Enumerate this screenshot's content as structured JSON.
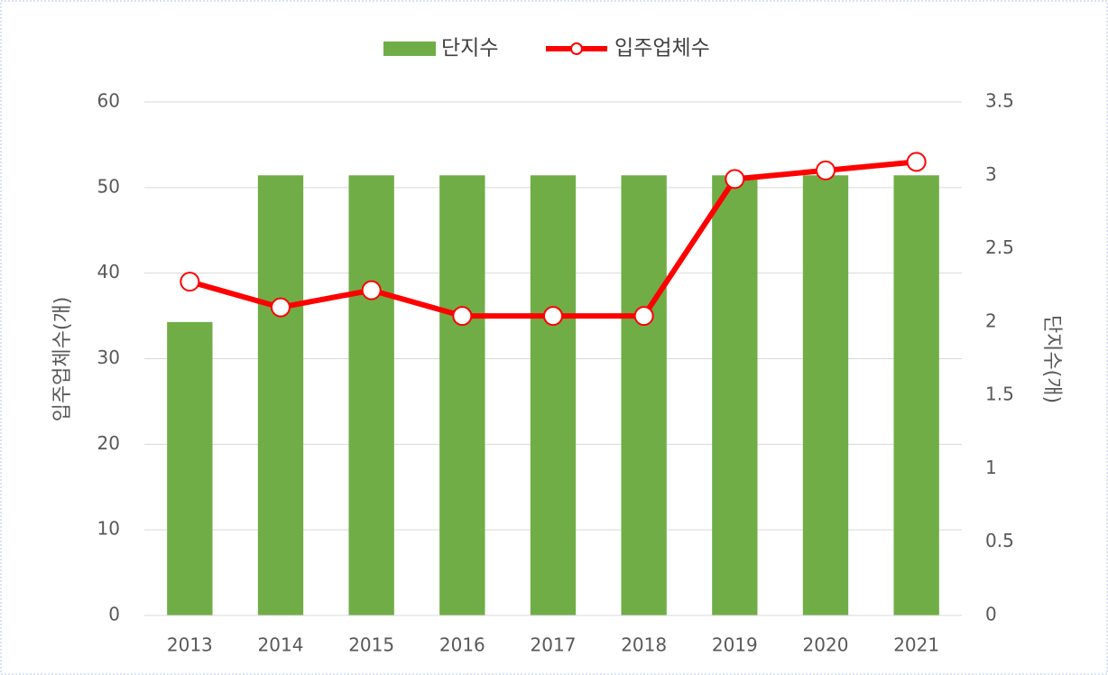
{
  "chart_data": {
    "type": "combo",
    "categories": [
      "2013",
      "2014",
      "2015",
      "2016",
      "2017",
      "2018",
      "2019",
      "2020",
      "2021"
    ],
    "series": [
      {
        "name": "단지수",
        "type": "bar",
        "axis": "y2",
        "color": "#70ad47",
        "values": [
          2,
          3,
          3,
          3,
          3,
          3,
          3,
          3,
          3
        ]
      },
      {
        "name": "입주업체수",
        "type": "line",
        "color": "#ff0000",
        "values": [
          39,
          36,
          38,
          35,
          35,
          35,
          51,
          52,
          53
        ]
      }
    ],
    "ylabel": "입주업체수(개)",
    "y2label": "단지수(개)",
    "ylim": [
      0,
      60
    ],
    "yticks": [
      0,
      10,
      20,
      30,
      40,
      50,
      60
    ],
    "y2lim": [
      0,
      3.5
    ],
    "y2ticks": [
      0,
      0.5,
      1,
      1.5,
      2,
      2.5,
      3,
      3.5
    ],
    "grid": true,
    "legend": "top"
  }
}
